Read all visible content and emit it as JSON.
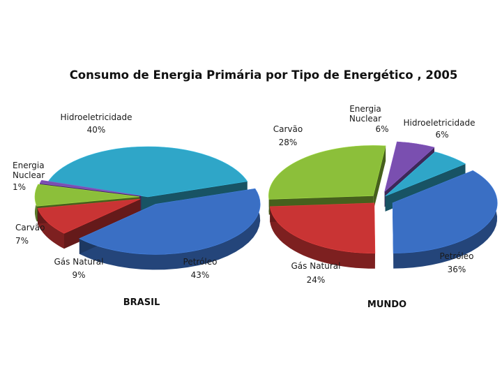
{
  "title": "Consumo de Energia Primária por Tipo de Energético , 2005",
  "colors": {
    "Petróleo": "#3a6fc4",
    "Hidroeletricidade": "#2fa6c8",
    "Energia Nuclear": "#7a4fb0",
    "Carvão": "#8cbf3a",
    "Gás Natural": "#c93434"
  },
  "chart_data": [
    {
      "type": "pie",
      "title": "BRASIL",
      "slices": [
        {
          "label": "Petróleo",
          "value": 43,
          "text": "43%"
        },
        {
          "label": "Gás Natural",
          "value": 9,
          "text": "9%"
        },
        {
          "label": "Carvão",
          "value": 7,
          "text": "7%"
        },
        {
          "label": "Energia Nuclear",
          "value": 1,
          "text": "1%"
        },
        {
          "label": "Hidroeletricidade",
          "value": 40,
          "text": "40%"
        }
      ]
    },
    {
      "type": "pie",
      "title": "MUNDO",
      "slices": [
        {
          "label": "Petróleo",
          "value": 36,
          "text": "36%"
        },
        {
          "label": "Gás Natural",
          "value": 24,
          "text": "24%"
        },
        {
          "label": "Carvão",
          "value": 28,
          "text": "28%"
        },
        {
          "label": "Energia Nuclear",
          "value": 6,
          "text": "6%"
        },
        {
          "label": "Hidroeletricidade",
          "value": 6,
          "text": "6%"
        }
      ]
    }
  ]
}
